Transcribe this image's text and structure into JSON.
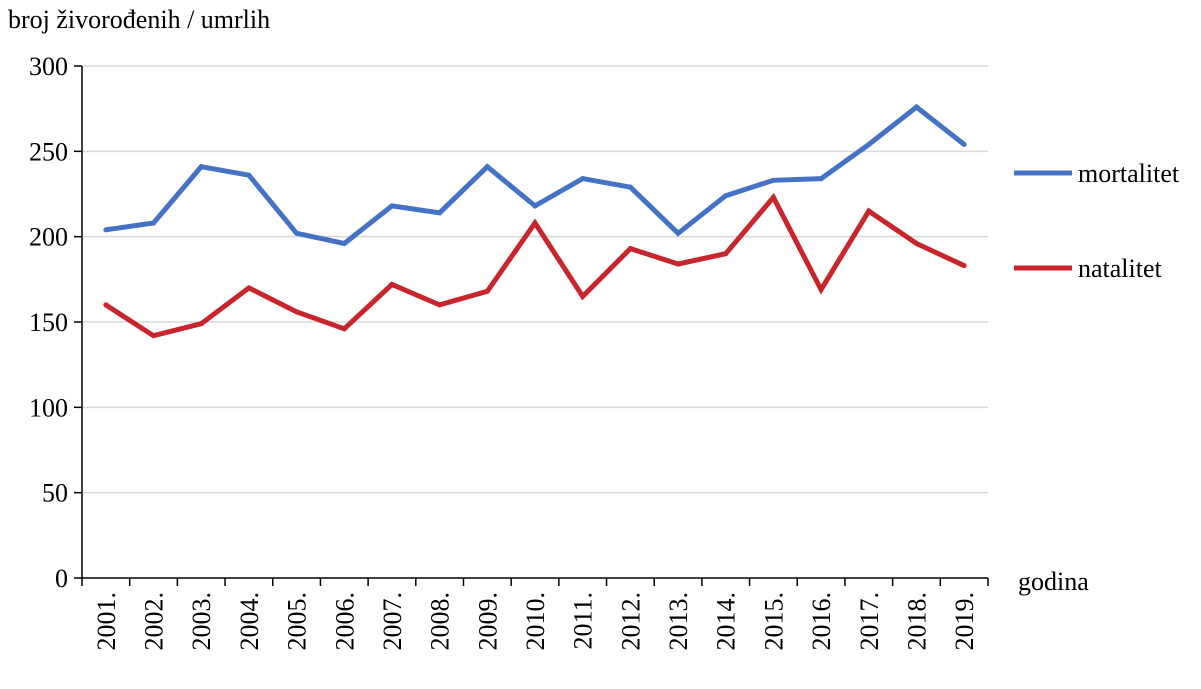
{
  "chart_data": {
    "type": "line",
    "ylabel": "broj živorođenih / umrlih",
    "xlabel": "godina",
    "ylim": [
      0,
      300
    ],
    "yticks": [
      0,
      50,
      100,
      150,
      200,
      250,
      300
    ],
    "grid": true,
    "legend": "right",
    "categories": [
      "2001.",
      "2002.",
      "2003.",
      "2004.",
      "2005.",
      "2006.",
      "2007.",
      "2008.",
      "2009.",
      "2010.",
      "2011.",
      "2012.",
      "2013.",
      "2014.",
      "2015.",
      "2016.",
      "2017.",
      "2018.",
      "2019."
    ],
    "series": [
      {
        "name": "mortalitet",
        "color": "#4472C4",
        "values": [
          204,
          208,
          241,
          236,
          202,
          196,
          218,
          214,
          241,
          218,
          234,
          229,
          202,
          224,
          233,
          234,
          254,
          276,
          254
        ]
      },
      {
        "name": "natalitet",
        "color": "#C9252C",
        "values": [
          160,
          142,
          149,
          170,
          156,
          146,
          172,
          160,
          168,
          208,
          165,
          193,
          184,
          190,
          223,
          169,
          215,
          196,
          183
        ]
      }
    ]
  }
}
